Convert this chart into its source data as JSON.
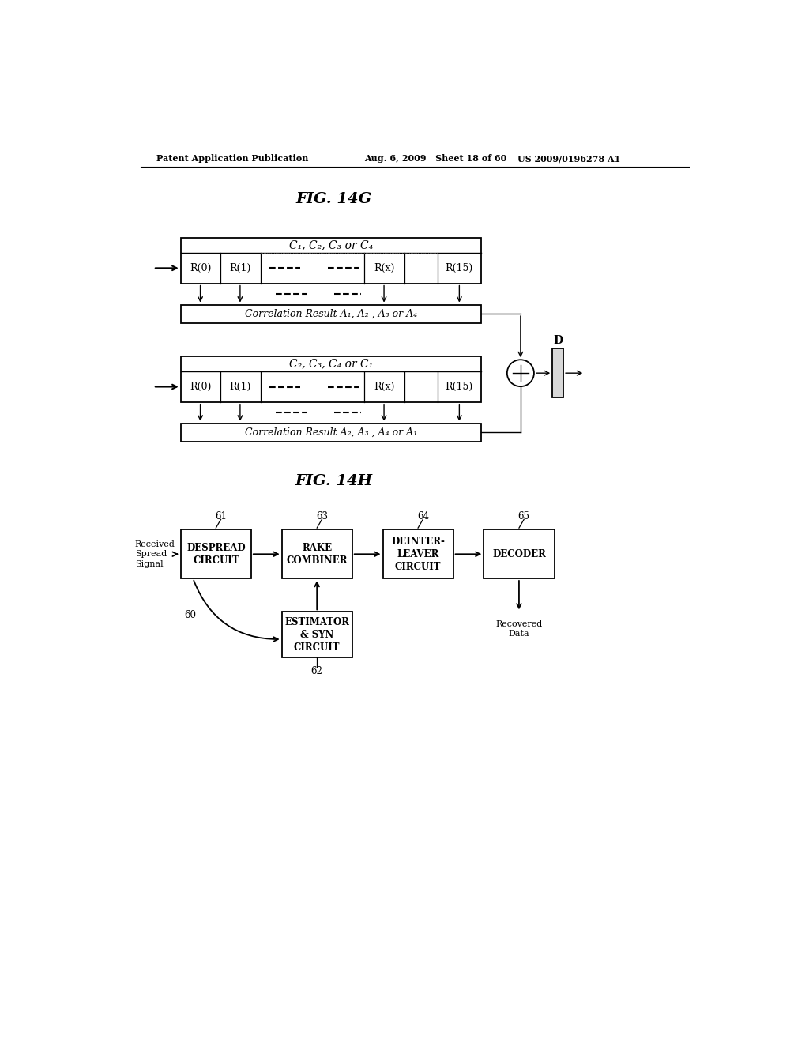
{
  "bg_color": "#ffffff",
  "header_left": "Patent Application Publication",
  "header_mid": "Aug. 6, 2009   Sheet 18 of 60",
  "header_right": "US 2009/0196278 A1",
  "fig14g_title": "FIG. 14G",
  "fig14h_title": "FIG. 14H",
  "top_block_label": "C₁, C₂, C₃ or C₄",
  "top_corr_label": "Correlation Result A₁, A₂ , A₃ or A₄",
  "bot_block_label": "C₂, C₃, C₄ or C₁",
  "bot_corr_label": "Correlation Result A₂, A₃ , A₄ or A₁",
  "D_label": "D",
  "received_label": "Received\nSpread\nSignal",
  "recovered_label": "Recovered\nData",
  "estimator_label": "ESTIMATOR\n& SYN\nCIRCUIT",
  "estimator_num": "62",
  "num60": "60",
  "boxes_labels": [
    "DESPREAD\nCIRCUIT",
    "RAKE\nCOMBINER",
    "DEINTER-\nLEAVER\nCIRCUIT",
    "DECODER"
  ],
  "boxes_nums": [
    "61",
    "63",
    "64",
    "65"
  ]
}
